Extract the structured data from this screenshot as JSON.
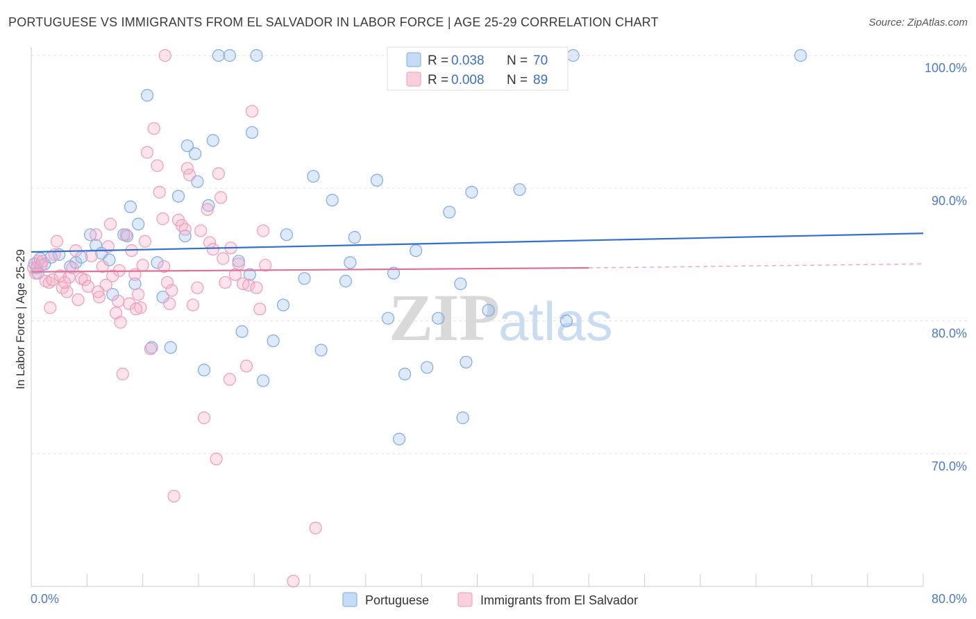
{
  "title": "PORTUGUESE VS IMMIGRANTS FROM EL SALVADOR IN LABOR FORCE | AGE 25-29 CORRELATION CHART",
  "source": "Source: ZipAtlas.com",
  "watermark": {
    "zip": "ZIP",
    "atlas": "atlas"
  },
  "legend_top": {
    "r_label": "R =",
    "n_label": "N =",
    "rows": [
      {
        "r": "0.038",
        "n": "70"
      },
      {
        "r": "0.008",
        "n": "89"
      }
    ]
  },
  "chart_data": {
    "type": "scatter",
    "title": "PORTUGUESE VS IMMIGRANTS FROM EL SALVADOR IN LABOR FORCE | AGE 25-29 CORRELATION CHART",
    "xlabel": "",
    "ylabel": "In Labor Force | Age 25-29",
    "xlim": [
      0,
      80
    ],
    "ylim": [
      60,
      100
    ],
    "x_tick_labels": [
      "0.0%",
      "80.0%"
    ],
    "y_ticks": [
      70,
      80,
      90,
      100
    ],
    "y_tick_labels": [
      "70.0%",
      "80.0%",
      "90.0%",
      "100.0%"
    ],
    "grid": true,
    "legend_position": "bottom",
    "series": [
      {
        "name": "Portuguese",
        "color": "#7aaae8",
        "fill": "rgba(160,195,240,0.35)",
        "trend": {
          "x": [
            0,
            80
          ],
          "y": [
            85.2,
            86.6
          ]
        },
        "points": [
          [
            0.3,
            84.3
          ],
          [
            0.5,
            84.0
          ],
          [
            0.8,
            84.7
          ],
          [
            1.2,
            84.3
          ],
          [
            1.8,
            84.8
          ],
          [
            2.5,
            85.0
          ],
          [
            3.5,
            84.1
          ],
          [
            4.0,
            84.4
          ],
          [
            4.5,
            84.8
          ],
          [
            5.3,
            86.5
          ],
          [
            5.8,
            85.7
          ],
          [
            6.3,
            85.1
          ],
          [
            7.0,
            84.6
          ],
          [
            7.3,
            82.0
          ],
          [
            8.3,
            86.5
          ],
          [
            8.6,
            86.4
          ],
          [
            8.9,
            88.6
          ],
          [
            9.3,
            82.8
          ],
          [
            9.6,
            87.3
          ],
          [
            10.4,
            97.0
          ],
          [
            10.8,
            78.0
          ],
          [
            11.3,
            84.4
          ],
          [
            11.8,
            81.8
          ],
          [
            12.5,
            78.0
          ],
          [
            13.2,
            89.4
          ],
          [
            13.8,
            86.4
          ],
          [
            14.0,
            93.2
          ],
          [
            14.7,
            92.6
          ],
          [
            14.9,
            90.5
          ],
          [
            15.5,
            76.3
          ],
          [
            15.9,
            88.7
          ],
          [
            16.3,
            93.6
          ],
          [
            16.8,
            100.0
          ],
          [
            17.8,
            100.0
          ],
          [
            18.6,
            84.5
          ],
          [
            18.9,
            79.2
          ],
          [
            19.6,
            83.5
          ],
          [
            19.8,
            94.2
          ],
          [
            20.2,
            100.0
          ],
          [
            20.8,
            75.5
          ],
          [
            21.7,
            78.5
          ],
          [
            22.6,
            81.2
          ],
          [
            22.9,
            86.5
          ],
          [
            24.5,
            83.2
          ],
          [
            25.3,
            90.9
          ],
          [
            26.0,
            77.8
          ],
          [
            27.0,
            89.1
          ],
          [
            28.2,
            83.0
          ],
          [
            28.6,
            84.4
          ],
          [
            29.0,
            86.3
          ],
          [
            31.0,
            90.6
          ],
          [
            32.0,
            80.2
          ],
          [
            32.5,
            83.6
          ],
          [
            33.0,
            71.1
          ],
          [
            33.5,
            76.0
          ],
          [
            34.5,
            85.3
          ],
          [
            35.5,
            76.5
          ],
          [
            36.5,
            80.2
          ],
          [
            37.5,
            88.2
          ],
          [
            38.5,
            82.8
          ],
          [
            38.7,
            72.7
          ],
          [
            39.0,
            76.9
          ],
          [
            39.5,
            89.7
          ],
          [
            41.0,
            80.8
          ],
          [
            43.8,
            89.9
          ],
          [
            48.0,
            80.0
          ],
          [
            48.6,
            100.0
          ],
          [
            69.0,
            100.0
          ],
          [
            34.0,
            100.0
          ],
          [
            0.6,
            83.6
          ]
        ]
      },
      {
        "name": "Immigrants from El Salvador",
        "color": "#f09ab8",
        "fill": "rgba(245,175,200,0.35)",
        "trend": {
          "x": [
            0,
            50
          ],
          "y": [
            83.7,
            84.0
          ]
        },
        "trend_dashed": {
          "x": [
            50,
            80
          ],
          "y": [
            84.0,
            84.3
          ]
        },
        "points": [
          [
            0.2,
            84.0
          ],
          [
            0.4,
            83.6
          ],
          [
            0.6,
            84.5
          ],
          [
            0.9,
            84.2
          ],
          [
            1.3,
            83.0
          ],
          [
            1.6,
            82.9
          ],
          [
            1.7,
            81.0
          ],
          [
            1.9,
            83.1
          ],
          [
            2.3,
            86.0
          ],
          [
            2.6,
            83.4
          ],
          [
            2.8,
            82.5
          ],
          [
            3.2,
            82.2
          ],
          [
            3.4,
            83.3
          ],
          [
            3.7,
            84.0
          ],
          [
            4.0,
            85.3
          ],
          [
            4.2,
            81.6
          ],
          [
            4.5,
            83.2
          ],
          [
            4.8,
            83.1
          ],
          [
            5.1,
            82.6
          ],
          [
            5.4,
            84.9
          ],
          [
            5.8,
            86.5
          ],
          [
            6.1,
            81.8
          ],
          [
            6.4,
            84.1
          ],
          [
            6.7,
            82.7
          ],
          [
            6.9,
            85.6
          ],
          [
            7.1,
            87.3
          ],
          [
            7.3,
            83.4
          ],
          [
            7.6,
            80.6
          ],
          [
            7.9,
            83.8
          ],
          [
            8.0,
            79.9
          ],
          [
            8.2,
            76.0
          ],
          [
            8.5,
            86.5
          ],
          [
            8.8,
            81.3
          ],
          [
            9.0,
            85.3
          ],
          [
            9.3,
            83.5
          ],
          [
            9.6,
            82.0
          ],
          [
            9.8,
            81.0
          ],
          [
            10.0,
            84.2
          ],
          [
            10.2,
            86.0
          ],
          [
            10.4,
            92.7
          ],
          [
            10.7,
            77.9
          ],
          [
            11.0,
            94.5
          ],
          [
            11.3,
            91.7
          ],
          [
            11.5,
            89.7
          ],
          [
            11.8,
            87.7
          ],
          [
            12.0,
            100.0
          ],
          [
            12.2,
            82.9
          ],
          [
            12.4,
            81.3
          ],
          [
            12.6,
            82.3
          ],
          [
            12.8,
            66.8
          ],
          [
            13.2,
            87.6
          ],
          [
            13.5,
            87.2
          ],
          [
            13.8,
            86.9
          ],
          [
            14.0,
            91.5
          ],
          [
            14.2,
            91.0
          ],
          [
            14.5,
            81.2
          ],
          [
            14.9,
            82.5
          ],
          [
            15.2,
            86.8
          ],
          [
            15.5,
            72.7
          ],
          [
            15.8,
            88.4
          ],
          [
            16.0,
            85.9
          ],
          [
            16.3,
            85.4
          ],
          [
            16.6,
            69.6
          ],
          [
            16.8,
            91.1
          ],
          [
            17.0,
            89.3
          ],
          [
            17.4,
            82.9
          ],
          [
            17.8,
            75.6
          ],
          [
            17.9,
            85.5
          ],
          [
            18.3,
            83.5
          ],
          [
            18.6,
            84.3
          ],
          [
            19.0,
            82.8
          ],
          [
            19.3,
            76.6
          ],
          [
            19.5,
            82.7
          ],
          [
            19.8,
            95.8
          ],
          [
            20.2,
            82.5
          ],
          [
            20.5,
            80.9
          ],
          [
            20.8,
            86.8
          ],
          [
            21.0,
            84.2
          ],
          [
            23.5,
            60.4
          ],
          [
            25.5,
            64.4
          ],
          [
            43.0,
            100.0
          ],
          [
            6.0,
            82.2
          ],
          [
            3.0,
            82.9
          ],
          [
            1.0,
            84.5
          ],
          [
            2.1,
            85.0
          ],
          [
            9.4,
            80.9
          ],
          [
            11.9,
            84.1
          ],
          [
            7.8,
            81.5
          ],
          [
            17.2,
            84.7
          ]
        ]
      }
    ]
  }
}
